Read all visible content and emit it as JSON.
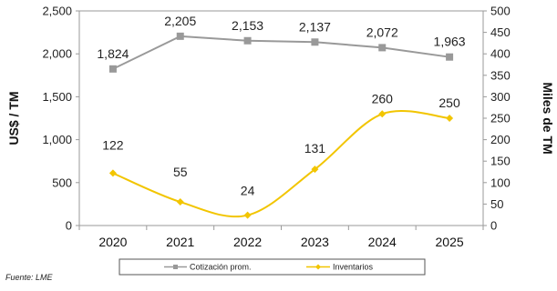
{
  "chart_data": {
    "type": "line",
    "categories": [
      "2020",
      "2021",
      "2022",
      "2023",
      "2024",
      "2025"
    ],
    "series": [
      {
        "name": "Cotización prom.",
        "axis": "left",
        "color": "#999999",
        "marker": "square",
        "values": [
          1824,
          2205,
          2153,
          2137,
          2072,
          1963
        ],
        "labels": [
          "1,824",
          "2,205",
          "2,153",
          "2,137",
          "2,072",
          "1,963"
        ]
      },
      {
        "name": "Inventarios",
        "axis": "right",
        "color": "#f2c500",
        "marker": "diamond",
        "smooth": true,
        "values": [
          122,
          55,
          24,
          131,
          260,
          250
        ],
        "labels": [
          "122",
          "55",
          "24",
          "131",
          "260",
          "250"
        ]
      }
    ],
    "ylabel": "US$ / TM",
    "y2label": "Miles de TM",
    "ylim": [
      0,
      2500
    ],
    "y2lim": [
      0,
      500
    ],
    "yticks": [
      "0",
      "500",
      "1,000",
      "1,500",
      "2,000",
      "2,500"
    ],
    "y2ticks": [
      "0",
      "50",
      "100",
      "150",
      "200",
      "250",
      "300",
      "350",
      "400",
      "450",
      "500"
    ],
    "grid": false,
    "legend_position": "bottom"
  },
  "source": "Fuente: LME"
}
